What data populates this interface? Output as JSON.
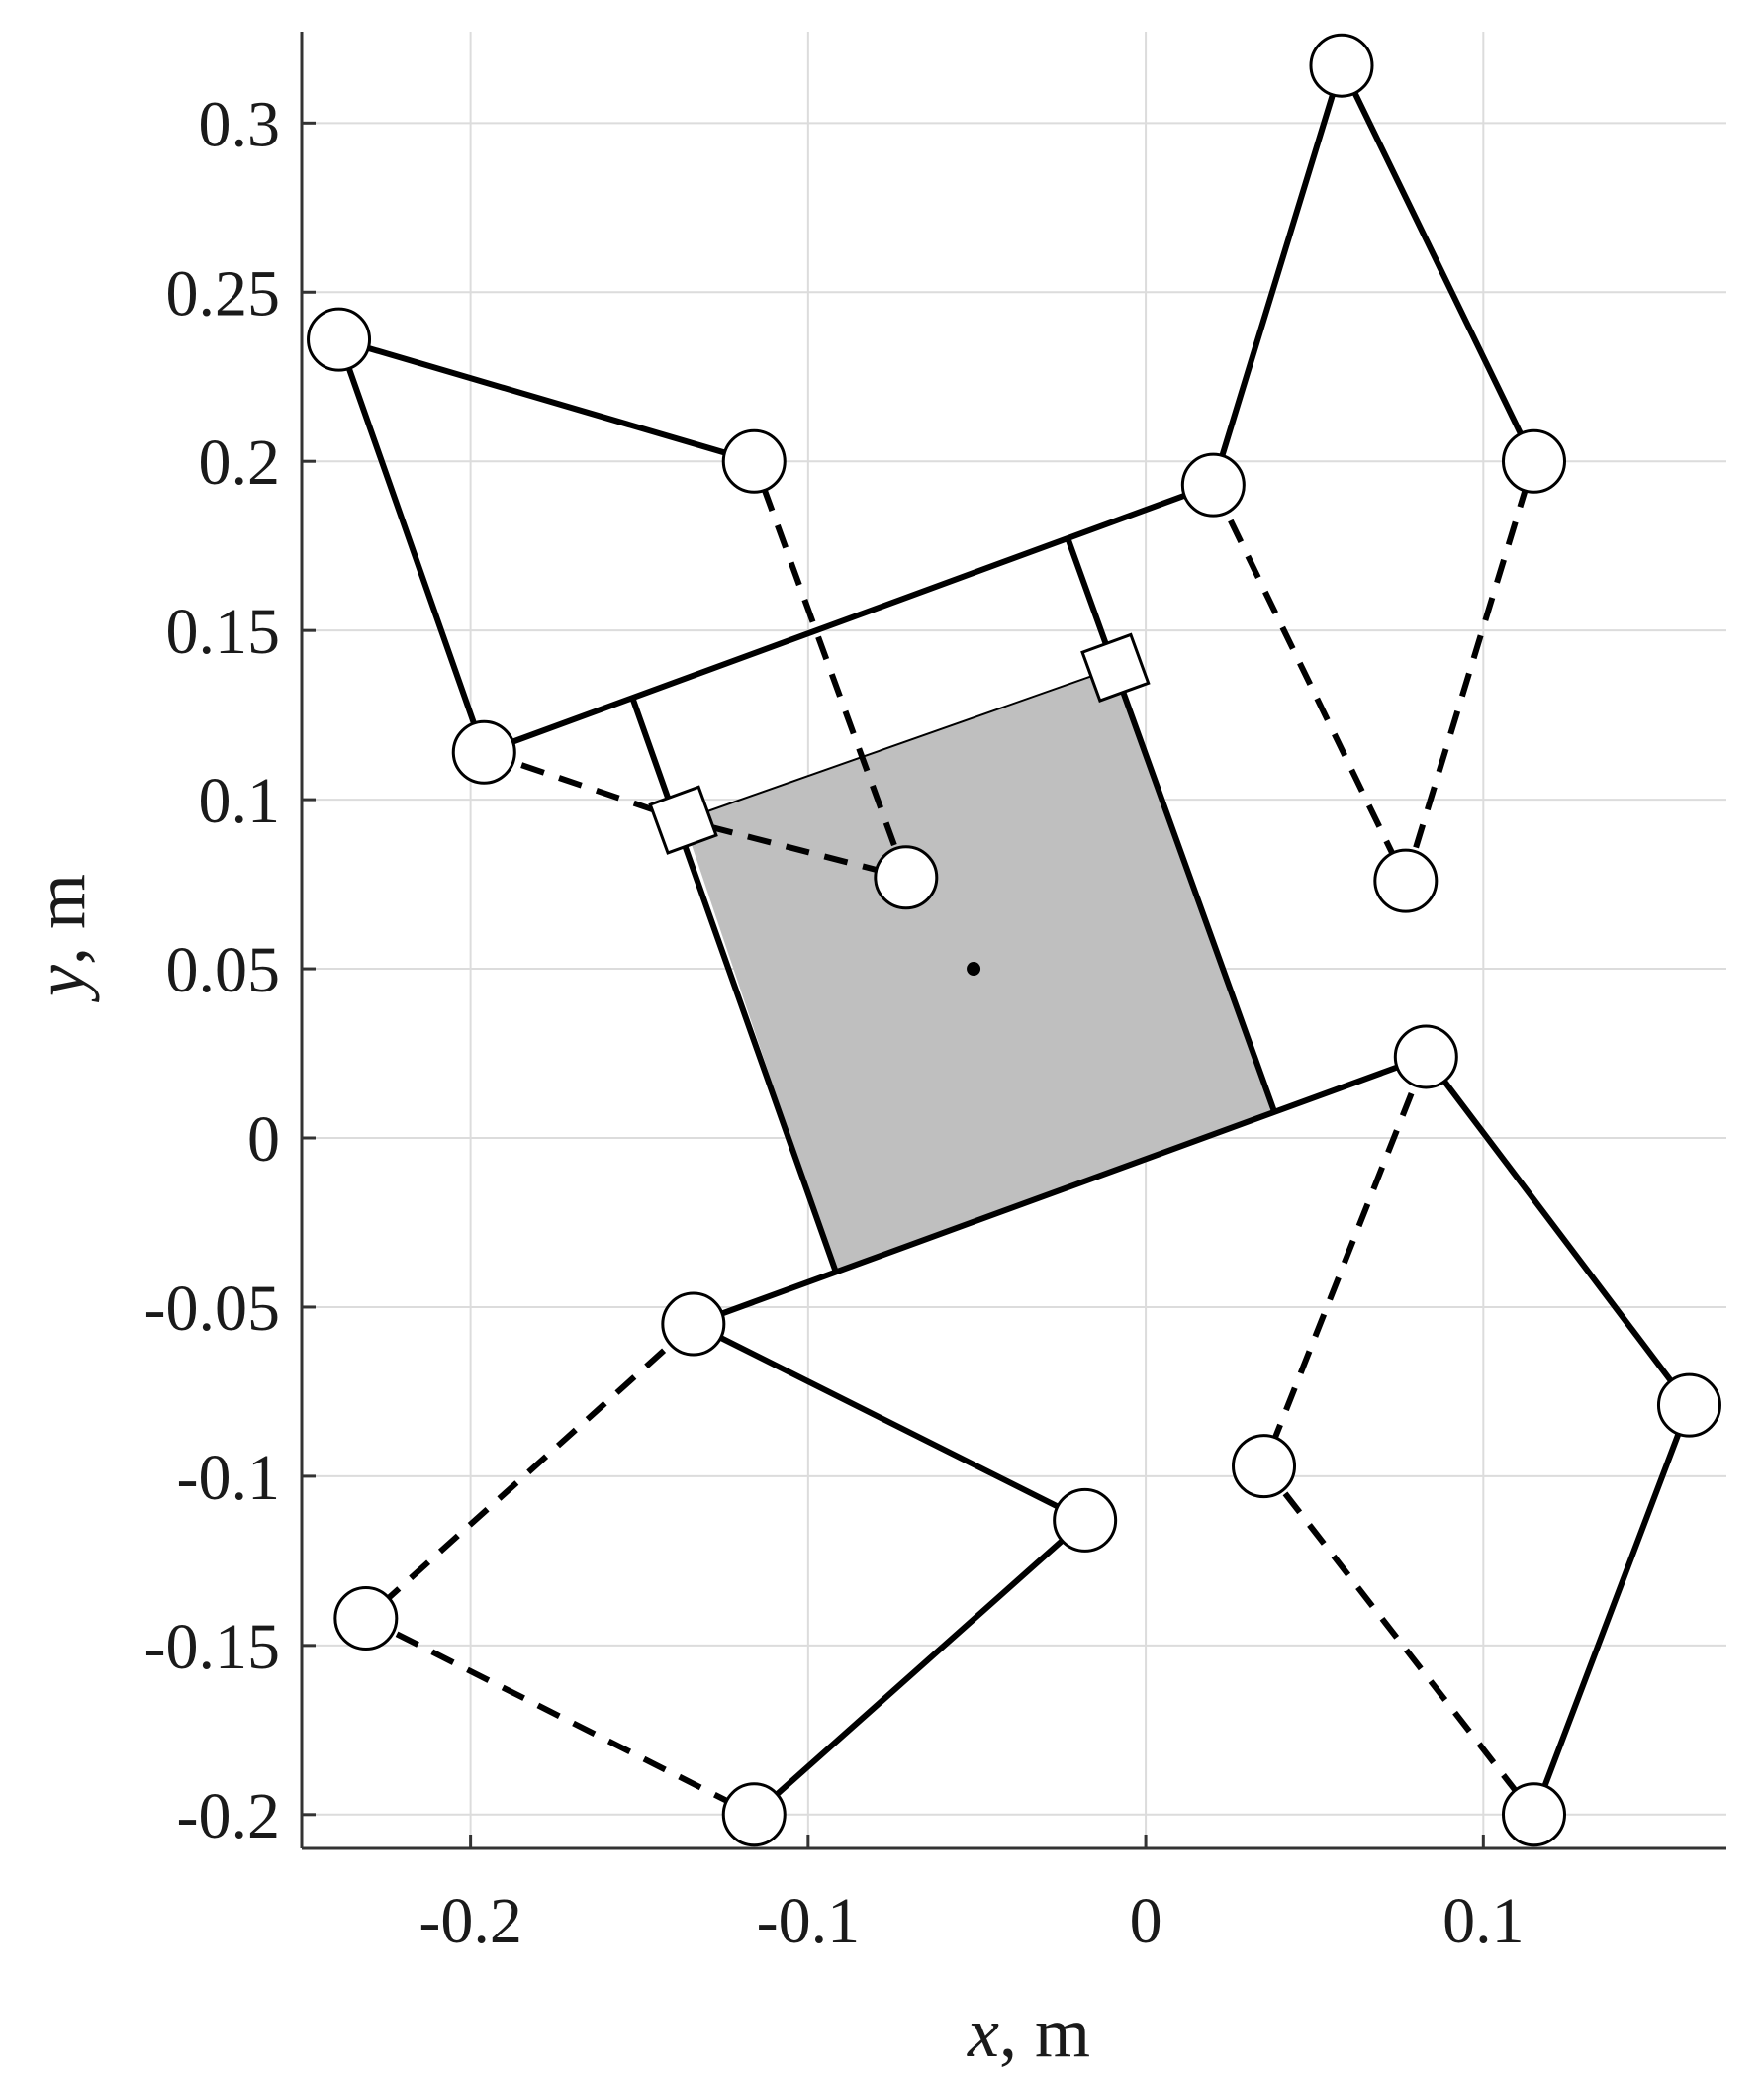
{
  "chart_data": {
    "type": "scatter",
    "xlabel": {
      "var": "x",
      "unit": ", m"
    },
    "ylabel": {
      "var": "y",
      "unit": ", m"
    },
    "xlim": [
      -0.25,
      0.172
    ],
    "ylim": [
      -0.21,
      0.327
    ],
    "xticks": [
      -0.2,
      -0.1,
      0,
      0.1
    ],
    "xtick_labels": [
      "-0.2",
      "-0.1",
      "0",
      "0.1"
    ],
    "yticks": [
      -0.2,
      -0.15,
      -0.1,
      -0.05,
      0,
      0.05,
      0.1,
      0.15,
      0.2,
      0.25,
      0.3
    ],
    "ytick_labels": [
      "-0.2",
      "-0.15",
      "-0.1",
      "-0.05",
      "0",
      "0.05",
      "0.1",
      "0.15",
      "0.2",
      "0.25",
      "0.3"
    ],
    "grid": true,
    "colors": {
      "body_fill": "#bfbfbf",
      "line": "#000000",
      "grid": "#dcdcdc"
    },
    "body": {
      "outline": [
        [
          -0.137,
          0.094
        ],
        [
          -0.009,
          0.139
        ],
        [
          0.038,
          0.008
        ],
        [
          -0.092,
          -0.039
        ]
      ],
      "center": [
        -0.051,
        0.05
      ]
    },
    "frame": {
      "top_bar": [
        [
          -0.196,
          0.114
        ],
        [
          0.02,
          0.193
        ]
      ],
      "bottom_bar": [
        [
          -0.134,
          -0.055
        ],
        [
          0.083,
          0.024
        ]
      ],
      "left_post": [
        [
          -0.152,
          0.13
        ],
        [
          -0.092,
          -0.039
        ]
      ],
      "right_post": [
        [
          -0.023,
          0.177
        ],
        [
          0.038,
          0.008
        ]
      ]
    },
    "solid_links": [
      [
        [
          -0.196,
          0.114
        ],
        [
          -0.239,
          0.236
        ],
        [
          -0.116,
          0.2
        ]
      ],
      [
        [
          0.02,
          0.193
        ],
        [
          0.058,
          0.317
        ],
        [
          0.115,
          0.2
        ]
      ],
      [
        [
          0.083,
          0.024
        ],
        [
          0.161,
          -0.079
        ],
        [
          0.115,
          -0.2
        ]
      ],
      [
        [
          -0.134,
          -0.055
        ],
        [
          -0.018,
          -0.113
        ],
        [
          -0.116,
          -0.2
        ]
      ]
    ],
    "dashed_links": [
      [
        [
          -0.196,
          0.114
        ],
        [
          -0.137,
          0.094
        ],
        [
          -0.071,
          0.077
        ],
        [
          -0.116,
          0.2
        ]
      ],
      [
        [
          0.02,
          0.193
        ],
        [
          0.077,
          0.076
        ],
        [
          0.115,
          0.2
        ]
      ],
      [
        [
          0.083,
          0.024
        ],
        [
          0.035,
          -0.097
        ],
        [
          0.115,
          -0.2
        ]
      ],
      [
        [
          -0.134,
          -0.055
        ],
        [
          -0.231,
          -0.142
        ],
        [
          -0.116,
          -0.2
        ]
      ]
    ],
    "joints": [
      [
        -0.239,
        0.236
      ],
      [
        -0.116,
        0.2
      ],
      [
        -0.196,
        0.114
      ],
      [
        -0.071,
        0.077
      ],
      [
        0.058,
        0.317
      ],
      [
        0.02,
        0.193
      ],
      [
        0.115,
        0.2
      ],
      [
        0.077,
        0.076
      ],
      [
        0.083,
        0.024
      ],
      [
        0.161,
        -0.079
      ],
      [
        0.035,
        -0.097
      ],
      [
        0.115,
        -0.2
      ],
      [
        -0.134,
        -0.055
      ],
      [
        -0.018,
        -0.113
      ],
      [
        -0.231,
        -0.142
      ],
      [
        -0.116,
        -0.2
      ]
    ],
    "anchors": [
      [
        -0.137,
        0.094
      ],
      [
        -0.009,
        0.139
      ]
    ]
  }
}
